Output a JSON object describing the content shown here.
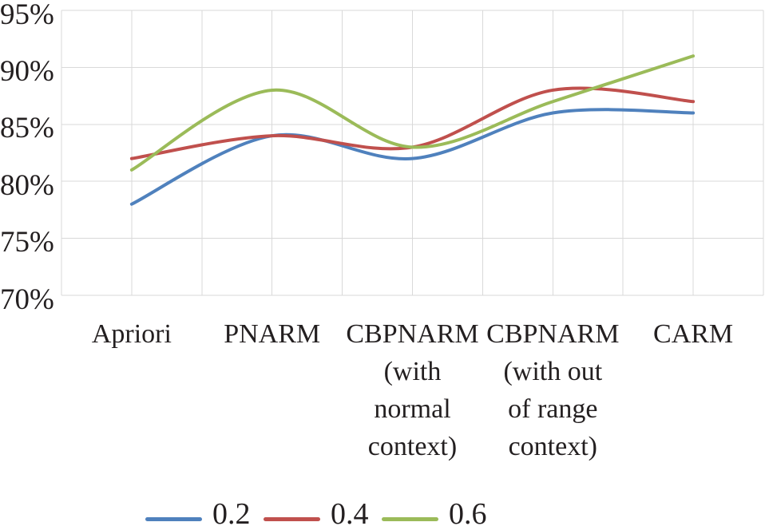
{
  "chart_data": {
    "type": "line",
    "smooth": true,
    "categories": [
      "Apriori",
      "PNARM",
      "CBPNARM\n(with\nnormal\ncontext)",
      "CBPNARM\n(with out\nof range\ncontext)",
      "CARM"
    ],
    "series": [
      {
        "name": "0.2",
        "color": "#4F81BD",
        "values": [
          78,
          84,
          82,
          86,
          86
        ]
      },
      {
        "name": "0.4",
        "color": "#C0504D",
        "values": [
          82,
          84,
          83,
          88,
          87
        ]
      },
      {
        "name": "0.6",
        "color": "#9BBB59",
        "values": [
          81,
          88,
          83,
          87,
          91
        ]
      }
    ],
    "yticks": [
      "95%",
      "90%",
      "85%",
      "80%",
      "75%",
      "70%"
    ],
    "ytick_values": [
      95,
      90,
      85,
      80,
      75,
      70
    ],
    "ylim": [
      70,
      95
    ],
    "unit": "%",
    "grid": true,
    "legend_position": "bottom",
    "colors": {
      "gridline": "#D9D9D9",
      "text": "#231F20",
      "background": "#FFFFFF"
    }
  }
}
